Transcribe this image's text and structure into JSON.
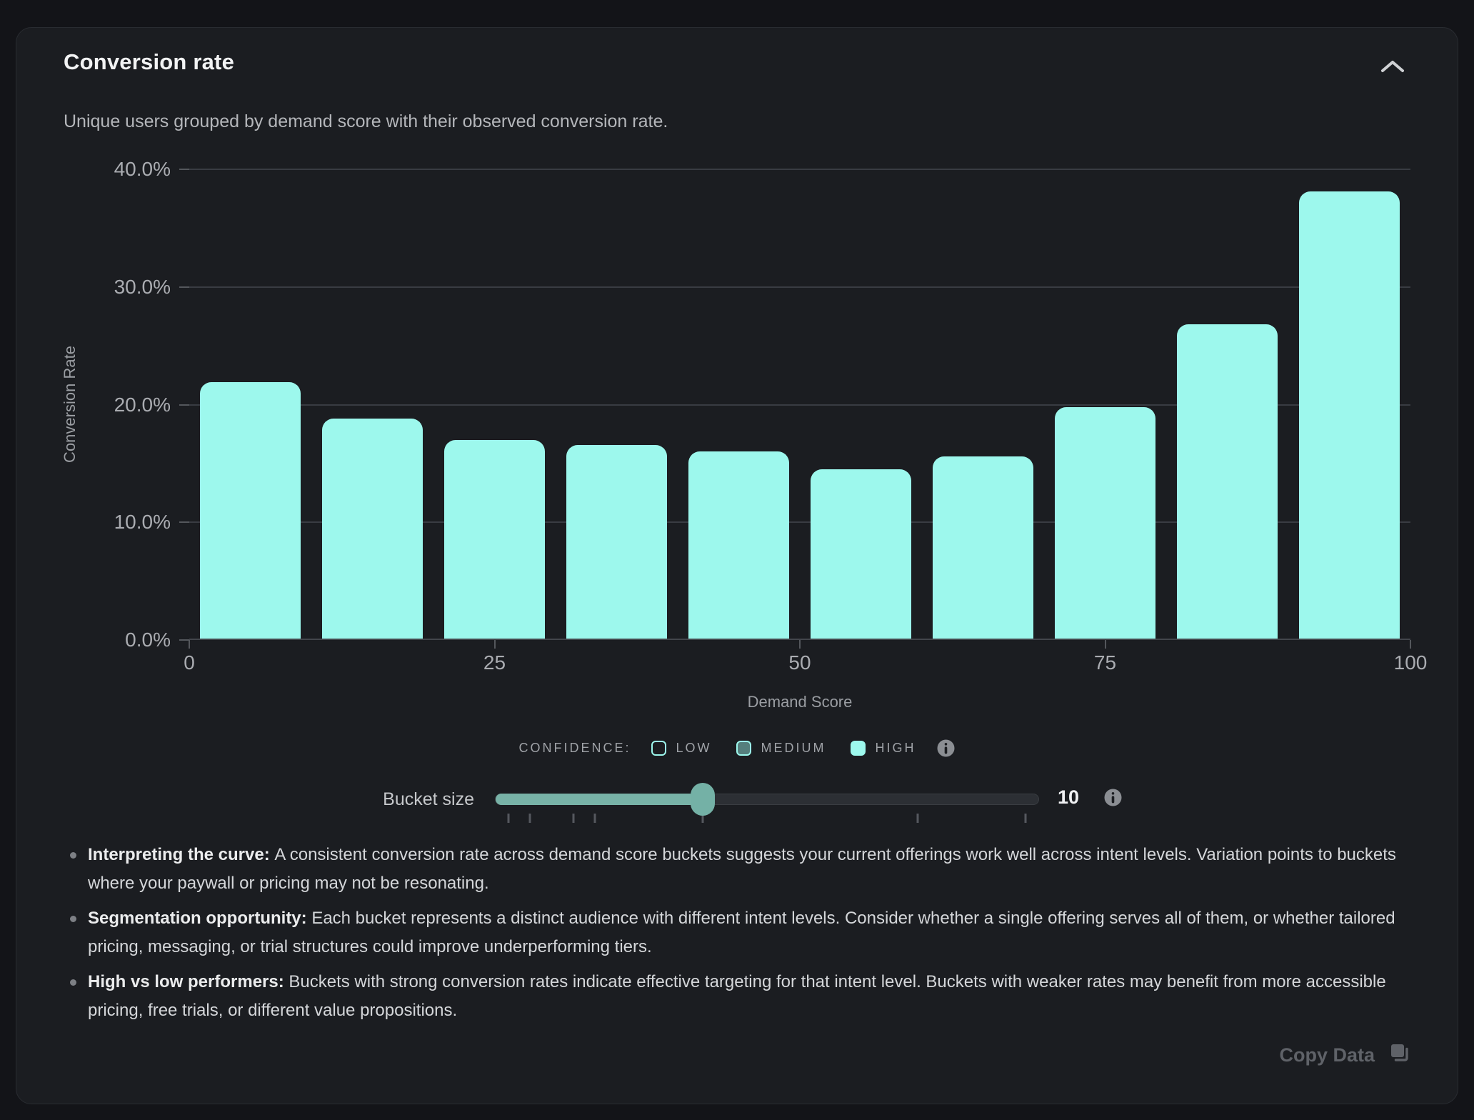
{
  "card": {
    "title": "Conversion rate",
    "subtitle": "Unique users grouped by demand score with their observed conversion rate."
  },
  "chart_data": {
    "type": "bar",
    "title": "Conversion rate",
    "xlabel": "Demand Score",
    "ylabel": "Conversion Rate",
    "ylim": [
      0,
      40
    ],
    "grid": true,
    "bar_color": "#9df8ed",
    "bucket_size": 10,
    "categories": [
      "0-10",
      "10-20",
      "20-30",
      "30-40",
      "40-50",
      "50-60",
      "60-70",
      "70-80",
      "80-90",
      "90-100"
    ],
    "values": [
      21.9,
      18.8,
      17.0,
      16.6,
      16.0,
      14.5,
      15.6,
      19.8,
      26.8,
      38.1
    ],
    "y_tick_labels": [
      "0.0%",
      "10.0%",
      "20.0%",
      "30.0%",
      "40.0%"
    ],
    "x_tick_labels": [
      "0",
      "25",
      "50",
      "75",
      "100"
    ],
    "x_tick_values": [
      0,
      25,
      50,
      75,
      100
    ]
  },
  "legend": {
    "label": "CONFIDENCE:",
    "items": [
      {
        "label": "LOW",
        "style": "outline"
      },
      {
        "label": "MEDIUM",
        "style": "half"
      },
      {
        "label": "HIGH",
        "style": "solid"
      }
    ]
  },
  "slider": {
    "label": "Bucket size",
    "min": 1,
    "max": 25,
    "value": 10,
    "value_display": "10",
    "tick_values": [
      1,
      2,
      4,
      5,
      10,
      20,
      25
    ]
  },
  "notes": [
    {
      "lead": "Interpreting the curve:",
      "text": "A consistent conversion rate across demand score buckets suggests your current offerings work well across intent levels. Variation points to buckets where your paywall or pricing may not be resonating."
    },
    {
      "lead": "Segmentation opportunity:",
      "text": "Each bucket represents a distinct audience with different intent levels. Consider whether a single offering serves all of them, or whether tailored pricing, messaging, or trial structures could improve underperforming tiers."
    },
    {
      "lead": "High vs low performers:",
      "text": "Buckets with strong conversion rates indicate effective targeting for that intent level. Buckets with weaker rates may benefit from more accessible pricing, free trials, or different value propositions."
    }
  ],
  "footer": {
    "copy_button": "Copy Data"
  },
  "colors": {
    "page_bg": "#131418",
    "card_bg": "#1b1d21",
    "bar": "#9df8ed",
    "slider_teal": "#74b1a6",
    "gridline": "#393c42",
    "muted_text": "#9fa2a7"
  }
}
